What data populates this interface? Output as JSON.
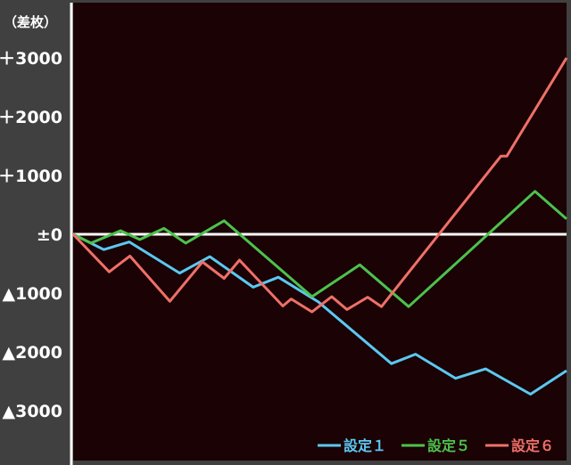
{
  "chart_data": {
    "type": "line",
    "unit_label": "（差枚）",
    "ylim": [
      -3000,
      3000
    ],
    "y_ticks": [
      {
        "value": 3000,
        "label": "＋3000"
      },
      {
        "value": 2000,
        "label": "＋2000"
      },
      {
        "value": 1000,
        "label": "＋1000"
      },
      {
        "value": 0,
        "label": "±0"
      },
      {
        "value": -1000,
        "label": "▲1000"
      },
      {
        "value": -2000,
        "label": "▲2000"
      },
      {
        "value": -3000,
        "label": "▲3000"
      }
    ],
    "x_range": [
      0,
      100
    ],
    "zero_line": true,
    "legend_position": "bottom-right",
    "series": [
      {
        "name": "設定１",
        "color": "#5cc8f0",
        "points": [
          [
            0,
            0
          ],
          [
            6.2,
            -260
          ],
          [
            11.4,
            -130
          ],
          [
            21.6,
            -660
          ],
          [
            27.7,
            -380
          ],
          [
            36.5,
            -900
          ],
          [
            41.6,
            -730
          ],
          [
            49.7,
            -1150
          ],
          [
            64.5,
            -2200
          ],
          [
            69.4,
            -2040
          ],
          [
            77.5,
            -2450
          ],
          [
            83.6,
            -2290
          ],
          [
            92.7,
            -2720
          ],
          [
            100,
            -2320
          ]
        ]
      },
      {
        "name": "設定５",
        "color": "#4cc24c",
        "points": [
          [
            0,
            0
          ],
          [
            3.6,
            -150
          ],
          [
            9.6,
            60
          ],
          [
            13.5,
            -90
          ],
          [
            18.4,
            100
          ],
          [
            22.8,
            -150
          ],
          [
            30.6,
            230
          ],
          [
            48.4,
            -1060
          ],
          [
            58.1,
            -520
          ],
          [
            68.0,
            -1230
          ],
          [
            93.6,
            730
          ],
          [
            100,
            260
          ]
        ]
      },
      {
        "name": "設定６",
        "color": "#ef7068",
        "points": [
          [
            0,
            0
          ],
          [
            7.3,
            -640
          ],
          [
            11.5,
            -370
          ],
          [
            19.6,
            -1140
          ],
          [
            26.2,
            -470
          ],
          [
            30.6,
            -750
          ],
          [
            33.7,
            -440
          ],
          [
            42.5,
            -1220
          ],
          [
            44.2,
            -1100
          ],
          [
            48.4,
            -1320
          ],
          [
            52.4,
            -1060
          ],
          [
            55.5,
            -1280
          ],
          [
            59.7,
            -1070
          ],
          [
            62.5,
            -1230
          ],
          [
            86.7,
            1330
          ],
          [
            87.9,
            1330
          ],
          [
            100,
            3000
          ]
        ]
      }
    ]
  }
}
